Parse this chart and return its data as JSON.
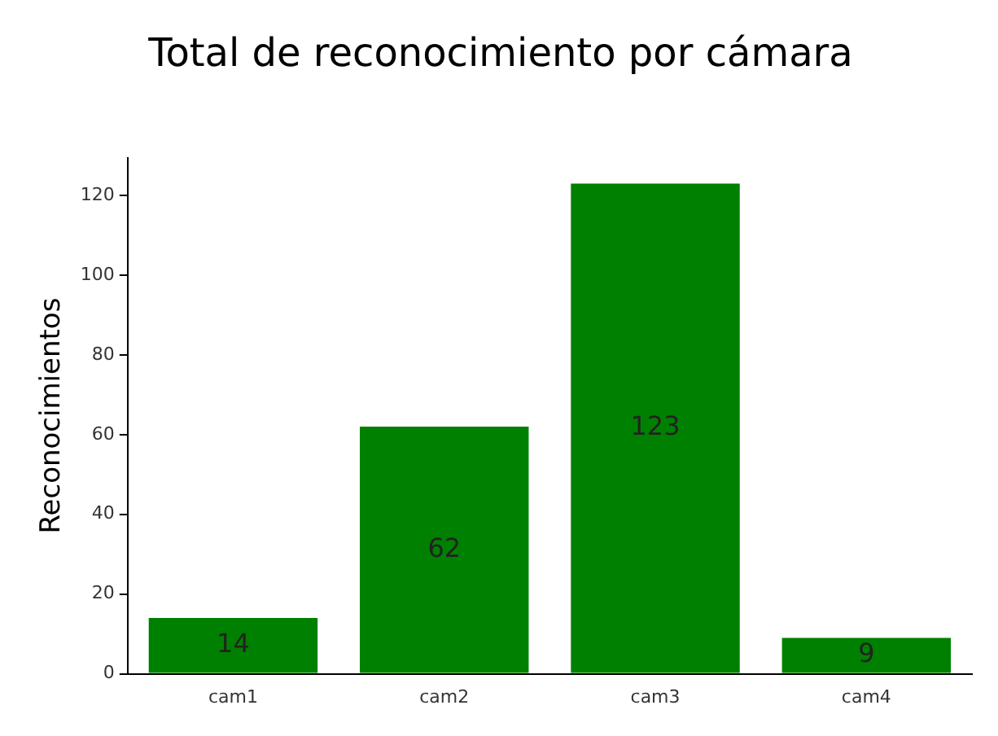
{
  "chart_data": {
    "type": "bar",
    "title": "Total de reconocimiento por cámara",
    "ylabel": "Reconocimientos",
    "categories": [
      "cam1",
      "cam2",
      "cam3",
      "cam4"
    ],
    "values": [
      14,
      62,
      123,
      9
    ],
    "color": "#008000",
    "ylim": [
      0,
      129.5
    ],
    "yticks": [
      0,
      20,
      40,
      60,
      80,
      100,
      120
    ],
    "grid": false,
    "data_labels": true
  }
}
